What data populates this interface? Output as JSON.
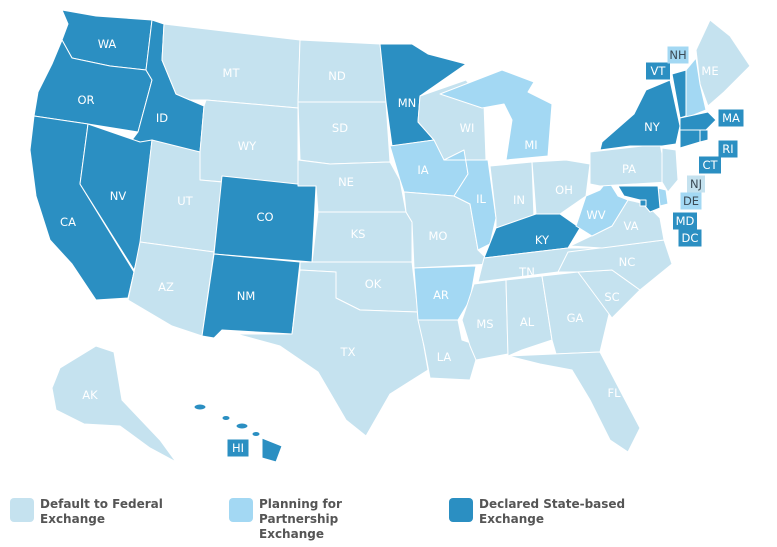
{
  "colors": {
    "federal": "#c5e2ef",
    "partnership": "#a3d8f3",
    "state": "#2b8fc2",
    "border": "#ffffff",
    "legend_text": "#555555"
  },
  "legend": [
    {
      "category": "federal",
      "line1": "Default to Federal",
      "line2": "Exchange"
    },
    {
      "category": "partnership",
      "line1": "Planning for Partnership",
      "line2": "Exchange"
    },
    {
      "category": "state",
      "line1": "Declared State-based",
      "line2": "Exchange"
    }
  ],
  "states": [
    {
      "abbr": "WA",
      "category": "state"
    },
    {
      "abbr": "OR",
      "category": "state"
    },
    {
      "abbr": "CA",
      "category": "state"
    },
    {
      "abbr": "ID",
      "category": "state"
    },
    {
      "abbr": "NV",
      "category": "state"
    },
    {
      "abbr": "MT",
      "category": "federal"
    },
    {
      "abbr": "WY",
      "category": "federal"
    },
    {
      "abbr": "UT",
      "category": "federal"
    },
    {
      "abbr": "AZ",
      "category": "federal"
    },
    {
      "abbr": "CO",
      "category": "state"
    },
    {
      "abbr": "NM",
      "category": "state"
    },
    {
      "abbr": "ND",
      "category": "federal"
    },
    {
      "abbr": "SD",
      "category": "federal"
    },
    {
      "abbr": "NE",
      "category": "federal"
    },
    {
      "abbr": "KS",
      "category": "federal"
    },
    {
      "abbr": "OK",
      "category": "federal"
    },
    {
      "abbr": "TX",
      "category": "federal"
    },
    {
      "abbr": "MN",
      "category": "state"
    },
    {
      "abbr": "IA",
      "category": "partnership"
    },
    {
      "abbr": "MO",
      "category": "federal"
    },
    {
      "abbr": "AR",
      "category": "partnership"
    },
    {
      "abbr": "LA",
      "category": "federal"
    },
    {
      "abbr": "WI",
      "category": "federal"
    },
    {
      "abbr": "IL",
      "category": "partnership"
    },
    {
      "abbr": "MI",
      "category": "partnership"
    },
    {
      "abbr": "IN",
      "category": "federal"
    },
    {
      "abbr": "OH",
      "category": "federal"
    },
    {
      "abbr": "KY",
      "category": "state"
    },
    {
      "abbr": "TN",
      "category": "federal"
    },
    {
      "abbr": "MS",
      "category": "federal"
    },
    {
      "abbr": "AL",
      "category": "federal"
    },
    {
      "abbr": "GA",
      "category": "federal"
    },
    {
      "abbr": "FL",
      "category": "federal"
    },
    {
      "abbr": "SC",
      "category": "federal"
    },
    {
      "abbr": "NC",
      "category": "federal"
    },
    {
      "abbr": "VA",
      "category": "federal"
    },
    {
      "abbr": "WV",
      "category": "partnership"
    },
    {
      "abbr": "PA",
      "category": "federal"
    },
    {
      "abbr": "NY",
      "category": "state"
    },
    {
      "abbr": "ME",
      "category": "federal"
    },
    {
      "abbr": "VT",
      "category": "state"
    },
    {
      "abbr": "NH",
      "category": "partnership"
    },
    {
      "abbr": "MA",
      "category": "state"
    },
    {
      "abbr": "RI",
      "category": "state"
    },
    {
      "abbr": "CT",
      "category": "state"
    },
    {
      "abbr": "NJ",
      "category": "federal"
    },
    {
      "abbr": "DE",
      "category": "partnership"
    },
    {
      "abbr": "MD",
      "category": "state"
    },
    {
      "abbr": "DC",
      "category": "state"
    },
    {
      "abbr": "AK",
      "category": "federal"
    },
    {
      "abbr": "HI",
      "category": "state"
    }
  ]
}
